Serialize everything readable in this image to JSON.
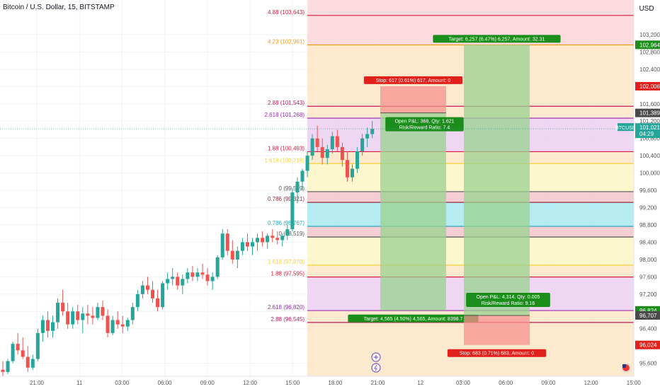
{
  "symbol": {
    "title": "Bitcoin / U.S. Dollar, 15, BITSTAMP"
  },
  "currency_button": "USD",
  "colors": {
    "up": "#26a69a",
    "down": "#ef5350",
    "grid": "#f0f3fa",
    "zone_top": "#fbd5d8",
    "zone_orange": "#fde5c4",
    "zone_purple": "#ecd0f2",
    "zone_yellow": "#fdf6c4",
    "zone_pink": "#f2c6cb",
    "zone_cyan": "#a9e8f0",
    "profit": "#99d18f",
    "loss": "#f5928d"
  },
  "chart_data": {
    "type": "candlestick",
    "y_axis": {
      "min": 95300,
      "max": 104000,
      "ticks": [
        95600,
        96400,
        96800,
        97200,
        97600,
        98000,
        98400,
        98800,
        99200,
        99600,
        100000,
        100400,
        100800,
        101200,
        101600,
        102000,
        102400,
        102800,
        103200
      ]
    },
    "x_axis": {
      "ticks": [
        "21:00",
        "11",
        "03:00",
        "06:00",
        "09:00",
        "12:00",
        "15:00",
        "18:00",
        "21:00",
        "12",
        "03:00",
        "06:00",
        "09:00",
        "12:00",
        "15:00"
      ]
    },
    "price_labels": [
      {
        "text": "102,964",
        "value": 102964,
        "color": "#1b8d1b"
      },
      {
        "text": "102,006",
        "value": 102006,
        "color": "#e0201a"
      },
      {
        "text": "101,389",
        "value": 101389,
        "color": "#4a4a4a"
      },
      {
        "text": "101,021",
        "value": 101021,
        "color": "#26a69a",
        "name": "BTCUSD",
        "countdown": "04:29"
      },
      {
        "text": "96,824",
        "value": 96824,
        "color": "#1b8d1b"
      },
      {
        "text": "96,707",
        "value": 96707,
        "color": "#4a4a4a"
      },
      {
        "text": "96,024",
        "value": 96024,
        "color": "#e0201a"
      }
    ],
    "fib_future": [
      {
        "label": "4.88 (103,643)",
        "value": 103643,
        "color": "#d81b3c"
      },
      {
        "label": "4.23 (102,961)",
        "value": 102961,
        "color": "#ef9a1a"
      },
      {
        "label": "2.88 (101,543)",
        "value": 101543,
        "color": "#c2185b"
      },
      {
        "label": "2.618 (101,268)",
        "value": 101268,
        "color": "#9c27b0"
      },
      {
        "label": "1.88 (100,493)",
        "value": 100493,
        "color": "#d81b3c"
      },
      {
        "label": "1.618 (100,218)",
        "value": 100218,
        "color": "#f6d23a"
      },
      {
        "label": "0 (99,569)",
        "value": 99569,
        "color": "#555555"
      },
      {
        "label": "0.786 (99,321)",
        "value": 99321,
        "color": "#8e2a3a"
      }
    ],
    "fib_past": [
      {
        "label": "0.786 (98,767)",
        "value": 98767,
        "color": "#2aa7b8"
      },
      {
        "label": "0 (98,519)",
        "value": 98519,
        "color": "#555555"
      },
      {
        "label": "1.618 (97,870)",
        "value": 97870,
        "color": "#f6d23a"
      },
      {
        "label": "1.88 (97,595)",
        "value": 97595,
        "color": "#d81b3c"
      },
      {
        "label": "2.618 (96,820)",
        "value": 96820,
        "color": "#9c27b0"
      },
      {
        "label": "2.88 (96,545)",
        "value": 96545,
        "color": "#c2185b"
      }
    ],
    "positions": [
      {
        "side": "short",
        "entry": 101389,
        "stop": 102006,
        "target": 96824,
        "stop_label": "Stop: 617 (0.61%) 617, Amount: 0",
        "target_label": "Target: 4,565 (4.50%) 4,565, Amount: 8398.7",
        "open_label": "Open P&L: 368, Qty: 1.621",
        "rr_label": "Risk/Reward Ratio: 7.4"
      },
      {
        "side": "long",
        "entry": 96707,
        "stop": 96024,
        "target": 102964,
        "stop_label": "Stop: 683 (0.71%) 683, Amount: 0",
        "target_label": "Target: 6,257 (6.47%) 6,257, Amount: 32.31",
        "open_label": "Open P&L: 4,314, Qty: 0.005",
        "rr_label": "Risk/Reward Ratio: 9.16"
      }
    ],
    "candles": [
      [
        95450,
        95650,
        95300,
        95400
      ],
      [
        95400,
        95700,
        95350,
        95650
      ],
      [
        95650,
        96100,
        95600,
        96050
      ],
      [
        96050,
        96300,
        95800,
        95900
      ],
      [
        95900,
        96200,
        95700,
        95750
      ],
      [
        95750,
        96000,
        95400,
        95500
      ],
      [
        95500,
        95800,
        95450,
        95700
      ],
      [
        95700,
        96400,
        95650,
        96300
      ],
      [
        96300,
        96700,
        96100,
        96600
      ],
      [
        96600,
        96800,
        96200,
        96350
      ],
      [
        96350,
        96700,
        96200,
        96550
      ],
      [
        96550,
        97100,
        96400,
        97000
      ],
      [
        97000,
        97300,
        96700,
        96800
      ],
      [
        96800,
        97000,
        96400,
        96500
      ],
      [
        96500,
        96900,
        96400,
        96800
      ],
      [
        96800,
        96950,
        96500,
        96600
      ],
      [
        96600,
        96900,
        96300,
        96750
      ],
      [
        96750,
        96950,
        96500,
        96700
      ],
      [
        96700,
        96900,
        96500,
        96650
      ],
      [
        96650,
        97000,
        96600,
        96900
      ],
      [
        96900,
        97050,
        96600,
        96700
      ],
      [
        96700,
        96850,
        96200,
        96300
      ],
      [
        96300,
        96700,
        96250,
        96600
      ],
      [
        96600,
        96800,
        96400,
        96500
      ],
      [
        96500,
        96700,
        96300,
        96450
      ],
      [
        96450,
        96650,
        96350,
        96600
      ],
      [
        96600,
        97000,
        96500,
        96900
      ],
      [
        96900,
        97300,
        96800,
        97200
      ],
      [
        97200,
        97500,
        97100,
        97400
      ],
      [
        97400,
        97600,
        97200,
        97300
      ],
      [
        97300,
        97500,
        97000,
        97100
      ],
      [
        97100,
        97300,
        96800,
        96900
      ],
      [
        96900,
        97500,
        96850,
        97450
      ],
      [
        97450,
        97700,
        97300,
        97550
      ],
      [
        97550,
        97800,
        97400,
        97600
      ],
      [
        97600,
        97700,
        97300,
        97400
      ],
      [
        97400,
        97650,
        97200,
        97550
      ],
      [
        97550,
        97800,
        97450,
        97700
      ],
      [
        97700,
        97850,
        97500,
        97600
      ],
      [
        97600,
        97800,
        97500,
        97700
      ],
      [
        97700,
        97900,
        97550,
        97650
      ],
      [
        97650,
        97800,
        97400,
        97500
      ],
      [
        97500,
        97700,
        97300,
        97600
      ],
      [
        97600,
        98100,
        97550,
        98050
      ],
      [
        98050,
        98700,
        98000,
        98600
      ],
      [
        98600,
        98700,
        98100,
        98200
      ],
      [
        98200,
        98450,
        97900,
        98000
      ],
      [
        98000,
        98300,
        97800,
        98200
      ],
      [
        98200,
        98500,
        98100,
        98400
      ],
      [
        98400,
        98600,
        98200,
        98300
      ],
      [
        98300,
        98500,
        98100,
        98400
      ],
      [
        98400,
        98600,
        98200,
        98500
      ],
      [
        98500,
        98650,
        98300,
        98400
      ],
      [
        98400,
        98600,
        98250,
        98550
      ],
      [
        98550,
        98700,
        98400,
        98500
      ],
      [
        98500,
        98650,
        98350,
        98450
      ],
      [
        98450,
        98600,
        98300,
        98550
      ],
      [
        98550,
        98800,
        98450,
        98700
      ],
      [
        98700,
        99650,
        98650,
        99550
      ],
      [
        99550,
        99900,
        99300,
        99800
      ],
      [
        99800,
        100100,
        99600,
        100050
      ],
      [
        100050,
        100500,
        99900,
        100400
      ],
      [
        100400,
        100900,
        100300,
        100800
      ],
      [
        100800,
        101100,
        100500,
        100600
      ],
      [
        100600,
        100800,
        100200,
        100350
      ],
      [
        100350,
        100650,
        100200,
        100550
      ],
      [
        100550,
        100950,
        100450,
        100850
      ],
      [
        100850,
        101000,
        100500,
        100600
      ],
      [
        100600,
        100700,
        100150,
        100300
      ],
      [
        100300,
        100500,
        99800,
        99900
      ],
      [
        99900,
        100200,
        99800,
        100100
      ],
      [
        100100,
        100600,
        100000,
        100500
      ],
      [
        100500,
        100900,
        100400,
        100800
      ],
      [
        100800,
        101050,
        100600,
        100900
      ],
      [
        100900,
        101200,
        100800,
        101021
      ]
    ]
  }
}
